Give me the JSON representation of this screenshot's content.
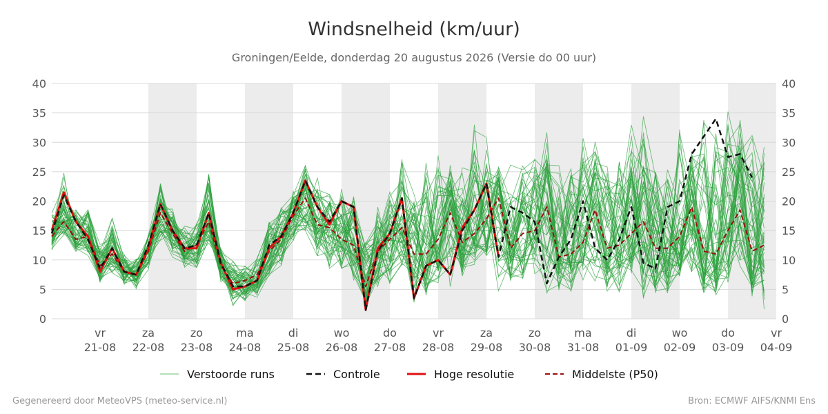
{
  "chart_data": {
    "type": "line",
    "title": "Windsnelheid (km/uur)",
    "subtitle": "Groningen/Eelde, donderdag 20 augustus 2026 (Versie do 00 uur)",
    "ylim": [
      0,
      40
    ],
    "yticks": [
      0,
      5,
      10,
      15,
      20,
      25,
      30,
      35,
      40
    ],
    "x_unit": "hours since 2026-08-20 00:00 (6-hourly)",
    "xlim": [
      0,
      360
    ],
    "x_ticks": [
      {
        "weekday": "vr",
        "date": "21-08"
      },
      {
        "weekday": "za",
        "date": "22-08"
      },
      {
        "weekday": "zo",
        "date": "23-08"
      },
      {
        "weekday": "ma",
        "date": "24-08"
      },
      {
        "weekday": "di",
        "date": "25-08"
      },
      {
        "weekday": "wo",
        "date": "26-08"
      },
      {
        "weekday": "do",
        "date": "27-08"
      },
      {
        "weekday": "vr",
        "date": "28-08"
      },
      {
        "weekday": "za",
        "date": "29-08"
      },
      {
        "weekday": "zo",
        "date": "30-08"
      },
      {
        "weekday": "ma",
        "date": "31-08"
      },
      {
        "weekday": "di",
        "date": "01-09"
      },
      {
        "weekday": "wo",
        "date": "02-09"
      },
      {
        "weekday": "do",
        "date": "03-09"
      },
      {
        "weekday": "vr",
        "date": "04-09"
      }
    ],
    "shaded_days": [
      "22-08",
      "24-08",
      "26-08",
      "28-08",
      "30-08",
      "01-09",
      "03-09"
    ],
    "grid": true,
    "legend_position": "bottom",
    "x_step_hours": 6,
    "series": [
      {
        "name": "Controle",
        "color": "#111111",
        "style": "dashed",
        "values": [
          14.5,
          21,
          16.5,
          13.5,
          8.5,
          12,
          8,
          7.5,
          12.5,
          19.5,
          15,
          12,
          12.5,
          18,
          9.5,
          5.5,
          5.5,
          6.5,
          12.5,
          14,
          18,
          23.5,
          19,
          16.5,
          20,
          19,
          1.5,
          11.5,
          14.5,
          20.5,
          3.5,
          9,
          10,
          7.5,
          15,
          18.5,
          23,
          10.5,
          19,
          18,
          16.5,
          6,
          10.5,
          13.5,
          20,
          12,
          10,
          13.5,
          19,
          9.5,
          8.5,
          19,
          20,
          28,
          31,
          34,
          27.5,
          28,
          24
        ]
      },
      {
        "name": "Hoge resolutie",
        "color": "#e01010",
        "style": "solid",
        "values": [
          15,
          21.5,
          16.5,
          14,
          8,
          12,
          8,
          7.5,
          12,
          19.5,
          15,
          12,
          12,
          18,
          9.5,
          5,
          5.5,
          6.5,
          12,
          14,
          18,
          23.5,
          19,
          16,
          20,
          19,
          1.5,
          12,
          14.5,
          20.5,
          3.5,
          9,
          10,
          7.5,
          15.5,
          18.5,
          23,
          10.5
        ]
      },
      {
        "name": "Middelste (P50)",
        "color": "#9a1010",
        "style": "dashed",
        "values": [
          14,
          16.5,
          13.5,
          14,
          9,
          11,
          8,
          7.5,
          11.5,
          18,
          14.5,
          11.5,
          12.5,
          16.5,
          9,
          6,
          6.5,
          7.5,
          11.5,
          13.5,
          17.5,
          20.5,
          16,
          15.5,
          13.5,
          12.5,
          5.5,
          11.5,
          13.5,
          15.5,
          11,
          11,
          13.5,
          18,
          13,
          14.5,
          17,
          20.5,
          12,
          14.5,
          15,
          19,
          10.5,
          11,
          13,
          18.5,
          12,
          12.5,
          14.5,
          16.5,
          12,
          12,
          14,
          19,
          11.5,
          11,
          15,
          18.5,
          11.5,
          12.5
        ]
      },
      {
        "name": "Verstoorde runs",
        "color": "#2aa03a",
        "style": "thin",
        "ensemble_members": 50,
        "spread_lower": [
          11,
          14,
          11,
          10,
          5.5,
          7,
          5,
          5,
          7.5,
          13,
          10,
          8,
          8,
          12,
          6,
          1.5,
          2,
          3,
          6.5,
          8,
          11,
          14,
          10,
          8,
          7.5,
          6,
          1,
          4,
          5,
          7,
          1.5,
          3,
          5,
          4,
          6,
          8,
          9,
          3,
          5,
          5,
          6,
          2,
          3,
          4,
          6,
          4,
          3,
          4,
          5,
          2,
          2,
          3,
          4,
          6,
          3,
          3,
          5,
          6,
          2,
          1
        ],
        "spread_upper": [
          19,
          27,
          19.5,
          20.5,
          13,
          18,
          12,
          11,
          15,
          24.5,
          19,
          16.5,
          17,
          26.5,
          13,
          10.5,
          9.5,
          12,
          18,
          21,
          24,
          27,
          26.5,
          23,
          23,
          23,
          16,
          20.5,
          23,
          28,
          22,
          28,
          30.5,
          27,
          28,
          35.5,
          33.5,
          27,
          27,
          28.5,
          29,
          33.5,
          28,
          27,
          36.5,
          31,
          29,
          31,
          33.5,
          37.5,
          28,
          33,
          34.5,
          32,
          38,
          34,
          36,
          35,
          33,
          32
        ]
      }
    ]
  },
  "legend": {
    "items": [
      {
        "key": "ens",
        "label": "Verstoorde runs"
      },
      {
        "key": "ctl",
        "label": "Controle"
      },
      {
        "key": "hres",
        "label": "Hoge resolutie"
      },
      {
        "key": "p50",
        "label": "Middelste (P50)"
      }
    ]
  },
  "footer": {
    "left": "Gegenereerd door MeteoVPS (meteo-service.nl)",
    "right": "Bron: ECMWF AIFS/KNMI Ens"
  }
}
